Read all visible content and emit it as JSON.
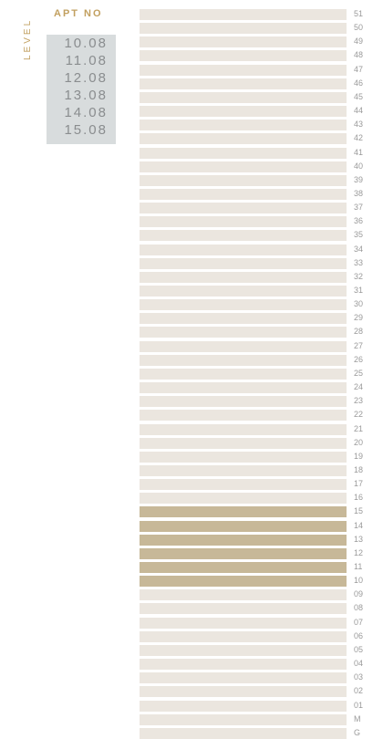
{
  "apt_panel": {
    "header": "APT NO",
    "level_label": "LEVEL",
    "apartments": [
      "10.08",
      "11.08",
      "12.08",
      "13.08",
      "14.08",
      "15.08"
    ]
  },
  "building": {
    "highlight_color": "#c7b898",
    "base_color": "#ebe6df",
    "floors": [
      {
        "label": "51",
        "highlighted": false
      },
      {
        "label": "50",
        "highlighted": false
      },
      {
        "label": "49",
        "highlighted": false
      },
      {
        "label": "48",
        "highlighted": false
      },
      {
        "label": "47",
        "highlighted": false
      },
      {
        "label": "46",
        "highlighted": false
      },
      {
        "label": "45",
        "highlighted": false
      },
      {
        "label": "44",
        "highlighted": false
      },
      {
        "label": "43",
        "highlighted": false
      },
      {
        "label": "42",
        "highlighted": false
      },
      {
        "label": "41",
        "highlighted": false
      },
      {
        "label": "40",
        "highlighted": false
      },
      {
        "label": "39",
        "highlighted": false
      },
      {
        "label": "38",
        "highlighted": false
      },
      {
        "label": "37",
        "highlighted": false
      },
      {
        "label": "36",
        "highlighted": false
      },
      {
        "label": "35",
        "highlighted": false
      },
      {
        "label": "34",
        "highlighted": false
      },
      {
        "label": "33",
        "highlighted": false
      },
      {
        "label": "32",
        "highlighted": false
      },
      {
        "label": "31",
        "highlighted": false
      },
      {
        "label": "30",
        "highlighted": false
      },
      {
        "label": "29",
        "highlighted": false
      },
      {
        "label": "28",
        "highlighted": false
      },
      {
        "label": "27",
        "highlighted": false
      },
      {
        "label": "26",
        "highlighted": false
      },
      {
        "label": "25",
        "highlighted": false
      },
      {
        "label": "24",
        "highlighted": false
      },
      {
        "label": "23",
        "highlighted": false
      },
      {
        "label": "22",
        "highlighted": false
      },
      {
        "label": "21",
        "highlighted": false
      },
      {
        "label": "20",
        "highlighted": false
      },
      {
        "label": "19",
        "highlighted": false
      },
      {
        "label": "18",
        "highlighted": false
      },
      {
        "label": "17",
        "highlighted": false
      },
      {
        "label": "16",
        "highlighted": false
      },
      {
        "label": "15",
        "highlighted": true
      },
      {
        "label": "14",
        "highlighted": true
      },
      {
        "label": "13",
        "highlighted": true
      },
      {
        "label": "12",
        "highlighted": true
      },
      {
        "label": "11",
        "highlighted": true
      },
      {
        "label": "10",
        "highlighted": true
      },
      {
        "label": "09",
        "highlighted": false
      },
      {
        "label": "08",
        "highlighted": false
      },
      {
        "label": "07",
        "highlighted": false
      },
      {
        "label": "06",
        "highlighted": false
      },
      {
        "label": "05",
        "highlighted": false
      },
      {
        "label": "04",
        "highlighted": false
      },
      {
        "label": "03",
        "highlighted": false
      },
      {
        "label": "02",
        "highlighted": false
      },
      {
        "label": "01",
        "highlighted": false
      },
      {
        "label": "M",
        "highlighted": false
      },
      {
        "label": "G",
        "highlighted": false
      }
    ]
  }
}
